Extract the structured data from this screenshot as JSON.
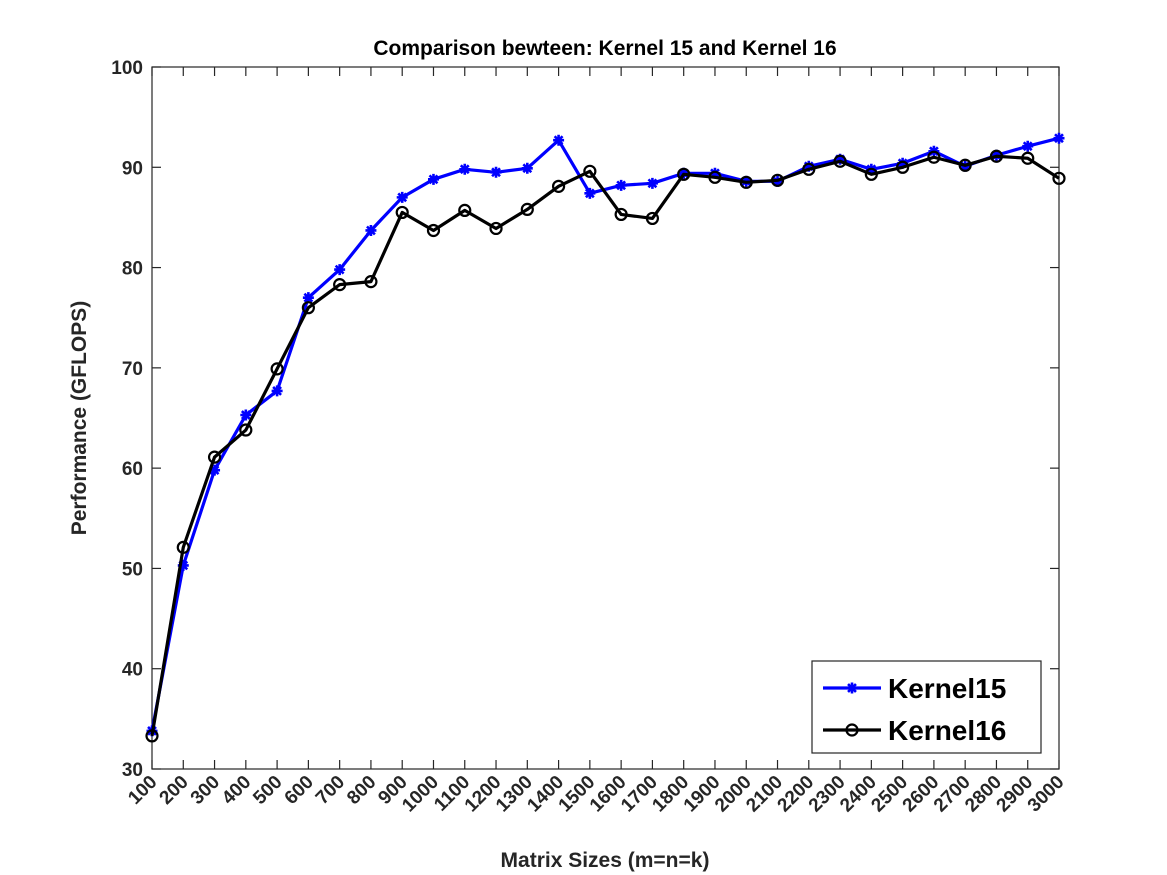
{
  "chart_data": {
    "type": "line",
    "title": "Comparison bewteen: Kernel 15 and Kernel 16",
    "xlabel": "Matrix Sizes (m=n=k)",
    "ylabel": "Performance (GFLOPS)",
    "ylim": [
      30,
      100
    ],
    "yticks": [
      30,
      40,
      50,
      60,
      70,
      80,
      90,
      100
    ],
    "x": [
      100,
      200,
      300,
      400,
      500,
      600,
      700,
      800,
      900,
      1000,
      1100,
      1200,
      1300,
      1400,
      1500,
      1600,
      1700,
      1800,
      1900,
      2000,
      2100,
      2200,
      2300,
      2400,
      2500,
      2600,
      2700,
      2800,
      2900,
      3000
    ],
    "grid": false,
    "legend_position": "bottom-right",
    "series": [
      {
        "name": "Kernel15",
        "color": "#0000ff",
        "marker": "asterisk",
        "values": [
          33.8,
          50.3,
          59.8,
          65.3,
          67.7,
          77.0,
          79.8,
          83.7,
          87.0,
          88.8,
          89.8,
          89.5,
          89.9,
          92.7,
          87.4,
          88.2,
          88.4,
          89.4,
          89.4,
          88.6,
          88.6,
          90.1,
          90.8,
          89.8,
          90.4,
          91.6,
          90.1,
          91.2,
          92.1,
          92.9
        ]
      },
      {
        "name": "Kernel16",
        "color": "#000000",
        "marker": "circle",
        "values": [
          33.3,
          52.1,
          61.1,
          63.8,
          69.9,
          76.0,
          78.3,
          78.6,
          85.5,
          83.7,
          85.7,
          83.9,
          85.8,
          88.1,
          89.6,
          85.3,
          84.9,
          89.3,
          89.0,
          88.5,
          88.7,
          89.8,
          90.6,
          89.3,
          90.0,
          91.0,
          90.2,
          91.1,
          90.9,
          88.9
        ]
      }
    ]
  }
}
